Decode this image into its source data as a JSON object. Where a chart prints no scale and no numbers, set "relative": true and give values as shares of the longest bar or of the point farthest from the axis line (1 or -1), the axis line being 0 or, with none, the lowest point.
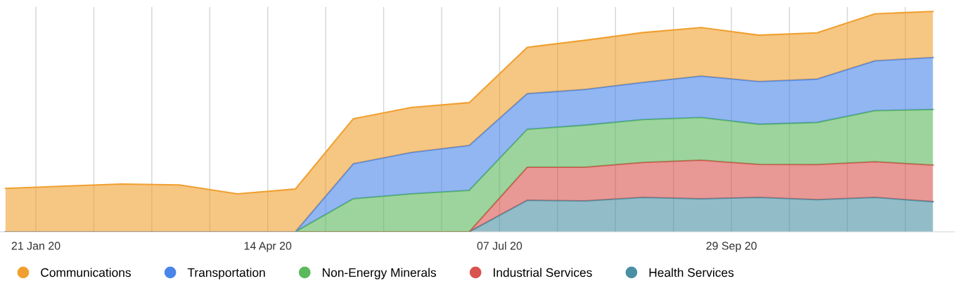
{
  "chart_data": {
    "type": "area",
    "stacked": true,
    "relative": true,
    "grid": "x",
    "legend": "bottom",
    "marker": "none",
    "x": [
      "2020-01-10",
      "2020-01-31",
      "2020-02-21",
      "2020-03-13",
      "2020-04-03",
      "2020-04-24",
      "2020-05-15",
      "2020-06-05",
      "2020-06-26",
      "2020-07-17",
      "2020-08-07",
      "2020-08-28",
      "2020-09-18",
      "2020-10-09",
      "2020-10-30",
      "2020-11-20",
      "2020-12-11"
    ],
    "xlim": [
      "2020-01-08",
      "2020-12-19"
    ],
    "xticks": [
      {
        "value": "2020-01-21",
        "label": "21 Jan 20"
      },
      {
        "value": "2020-02-11",
        "label": null
      },
      {
        "value": "2020-03-03",
        "label": null
      },
      {
        "value": "2020-03-24",
        "label": null
      },
      {
        "value": "2020-04-14",
        "label": "14 Apr 20"
      },
      {
        "value": "2020-05-05",
        "label": null
      },
      {
        "value": "2020-05-26",
        "label": null
      },
      {
        "value": "2020-06-16",
        "label": null
      },
      {
        "value": "2020-07-07",
        "label": "07 Jul 20"
      },
      {
        "value": "2020-07-28",
        "label": null
      },
      {
        "value": "2020-08-18",
        "label": null
      },
      {
        "value": "2020-09-08",
        "label": null
      },
      {
        "value": "2020-09-29",
        "label": "29 Sep 20"
      },
      {
        "value": "2020-10-20",
        "label": null
      },
      {
        "value": "2020-11-10",
        "label": null
      },
      {
        "value": "2020-12-01",
        "label": null
      }
    ],
    "series": [
      {
        "name": "Health Services",
        "color": "#4a90a4",
        "values": [
          0,
          0,
          0,
          0,
          0,
          0,
          0,
          0,
          0,
          0.143,
          0.14,
          0.156,
          0.15,
          0.156,
          0.146,
          0.156,
          0.137
        ]
      },
      {
        "name": "Industrial Services",
        "color": "#d9534f",
        "values": [
          0,
          0,
          0,
          0,
          0,
          0,
          0,
          0,
          0,
          0.15,
          0.153,
          0.159,
          0.175,
          0.15,
          0.159,
          0.162,
          0.166
        ]
      },
      {
        "name": "Non-Energy Minerals",
        "color": "#5cb85c",
        "values": [
          0,
          0,
          0,
          0,
          0,
          0,
          0.15,
          0.172,
          0.188,
          0.172,
          0.191,
          0.194,
          0.194,
          0.182,
          0.191,
          0.232,
          0.252
        ]
      },
      {
        "name": "Transportation",
        "color": "#4a86e8",
        "values": [
          0,
          0,
          0,
          0,
          0,
          0,
          0.159,
          0.188,
          0.204,
          0.162,
          0.162,
          0.169,
          0.188,
          0.194,
          0.197,
          0.226,
          0.236
        ]
      },
      {
        "name": "Communications",
        "color": "#f0a030",
        "values": [
          0.197,
          0.207,
          0.217,
          0.213,
          0.172,
          0.194,
          0.204,
          0.204,
          0.194,
          0.21,
          0.223,
          0.226,
          0.22,
          0.21,
          0.21,
          0.213,
          0.209
        ]
      }
    ]
  }
}
